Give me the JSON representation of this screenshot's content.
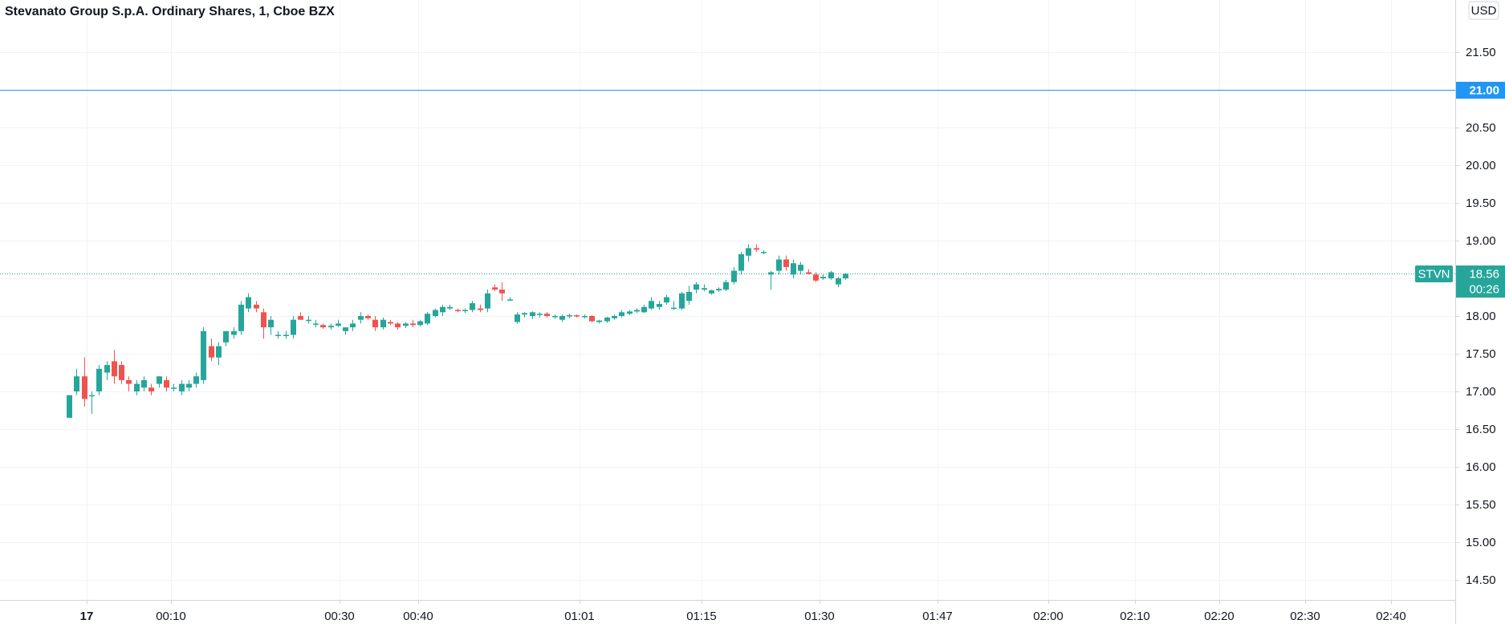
{
  "chart_data": {
    "type": "candlestick",
    "title": "Stevanato Group S.p.A. Ordinary Shares, 1, Cboe BZX",
    "currency": "USD",
    "ylim": [
      14.25,
      22.1
    ],
    "y_ticks": [
      "14.50",
      "15.00",
      "15.50",
      "16.00",
      "16.50",
      "17.00",
      "17.50",
      "18.00",
      "18.50",
      "19.00",
      "19.50",
      "20.00",
      "20.50",
      "21.00",
      "21.50"
    ],
    "x_ticks": [
      "17",
      "00:10",
      "00:30",
      "00:40",
      "01:01",
      "01:15",
      "01:30",
      "01:47",
      "02:00",
      "02:10",
      "02:20",
      "02:30",
      "02:40"
    ],
    "grid": true,
    "colors": {
      "up": "#26a69a",
      "down": "#ef5350",
      "hline": "#2196f3",
      "grid": "#f0f3fa"
    },
    "horizontal_line": {
      "value": 21.0,
      "label": "21.00"
    },
    "last_price": {
      "symbol": "STVN",
      "value": 18.56,
      "label": "18.56",
      "countdown": "00:26"
    },
    "candles": [
      [
        16.65,
        16.95,
        16.65,
        16.95
      ],
      [
        17.0,
        17.3,
        16.95,
        17.2
      ],
      [
        17.2,
        17.45,
        16.8,
        16.9
      ],
      [
        16.95,
        17.0,
        16.7,
        16.95
      ],
      [
        17.0,
        17.35,
        16.95,
        17.3
      ],
      [
        17.25,
        17.4,
        17.15,
        17.35
      ],
      [
        17.4,
        17.55,
        17.1,
        17.2
      ],
      [
        17.35,
        17.4,
        17.1,
        17.15
      ],
      [
        17.15,
        17.2,
        17.0,
        17.1
      ],
      [
        17.0,
        17.15,
        16.95,
        17.1
      ],
      [
        17.05,
        17.2,
        17.0,
        17.15
      ],
      [
        17.05,
        17.1,
        16.95,
        17.0
      ],
      [
        17.1,
        17.2,
        17.05,
        17.2
      ],
      [
        17.15,
        17.2,
        17.0,
        17.05
      ],
      [
        17.05,
        17.1,
        17.0,
        17.05
      ],
      [
        17.0,
        17.15,
        16.95,
        17.1
      ],
      [
        17.05,
        17.15,
        17.0,
        17.1
      ],
      [
        17.1,
        17.25,
        17.05,
        17.2
      ],
      [
        17.15,
        17.85,
        17.1,
        17.8
      ],
      [
        17.6,
        17.7,
        17.4,
        17.45
      ],
      [
        17.45,
        17.65,
        17.35,
        17.6
      ],
      [
        17.65,
        17.8,
        17.6,
        17.8
      ],
      [
        17.75,
        17.85,
        17.7,
        17.8
      ],
      [
        17.8,
        18.2,
        17.75,
        18.15
      ],
      [
        18.1,
        18.3,
        18.05,
        18.25
      ],
      [
        18.15,
        18.2,
        18.05,
        18.1
      ],
      [
        18.05,
        18.1,
        17.7,
        17.85
      ],
      [
        17.85,
        18.0,
        17.75,
        17.95
      ],
      [
        17.75,
        17.8,
        17.7,
        17.75
      ],
      [
        17.75,
        17.8,
        17.7,
        17.75
      ],
      [
        17.75,
        18.0,
        17.7,
        17.95
      ],
      [
        18.0,
        18.05,
        17.95,
        17.95
      ],
      [
        17.95,
        18.0,
        17.9,
        17.95
      ],
      [
        17.9,
        17.95,
        17.85,
        17.9
      ],
      [
        17.88,
        17.9,
        17.83,
        17.85
      ],
      [
        17.85,
        17.9,
        17.82,
        17.87
      ],
      [
        17.87,
        17.95,
        17.85,
        17.9
      ],
      [
        17.8,
        17.85,
        17.75,
        17.85
      ],
      [
        17.85,
        17.95,
        17.8,
        17.9
      ],
      [
        17.95,
        18.05,
        17.9,
        18.0
      ],
      [
        18.0,
        18.02,
        17.95,
        17.97
      ],
      [
        17.95,
        18.0,
        17.8,
        17.85
      ],
      [
        17.85,
        17.98,
        17.82,
        17.95
      ],
      [
        17.92,
        17.95,
        17.88,
        17.9
      ],
      [
        17.9,
        17.92,
        17.82,
        17.85
      ],
      [
        17.87,
        17.92,
        17.84,
        17.9
      ],
      [
        17.9,
        17.95,
        17.85,
        17.88
      ],
      [
        17.88,
        17.95,
        17.86,
        17.93
      ],
      [
        17.9,
        18.05,
        17.88,
        18.03
      ],
      [
        18.0,
        18.1,
        17.98,
        18.08
      ],
      [
        18.05,
        18.15,
        18.0,
        18.12
      ],
      [
        18.1,
        18.15,
        18.08,
        18.12
      ],
      [
        18.08,
        18.1,
        18.05,
        18.07
      ],
      [
        18.07,
        18.1,
        18.04,
        18.08
      ],
      [
        18.08,
        18.2,
        18.05,
        18.17
      ],
      [
        18.1,
        18.15,
        18.05,
        18.08
      ],
      [
        18.1,
        18.35,
        18.05,
        18.3
      ],
      [
        18.38,
        18.42,
        18.33,
        18.35
      ],
      [
        18.35,
        18.45,
        18.2,
        18.3
      ],
      [
        18.22,
        18.25,
        18.2,
        18.22
      ],
      [
        17.92,
        18.05,
        17.9,
        18.02
      ],
      [
        18.02,
        18.05,
        17.98,
        18.04
      ],
      [
        18.0,
        18.06,
        17.96,
        18.05
      ],
      [
        18.02,
        18.05,
        17.98,
        18.03
      ],
      [
        18.03,
        18.05,
        17.98,
        18.0
      ],
      [
        17.99,
        18.02,
        17.96,
        18.0
      ],
      [
        17.95,
        18.02,
        17.92,
        18.0
      ],
      [
        18.0,
        18.03,
        17.97,
        18.01
      ],
      [
        18.01,
        18.02,
        17.98,
        18.0
      ],
      [
        18.0,
        18.02,
        17.97,
        18.0
      ],
      [
        18.0,
        18.01,
        17.92,
        17.93
      ],
      [
        17.92,
        17.95,
        17.9,
        17.94
      ],
      [
        17.93,
        17.99,
        17.91,
        17.98
      ],
      [
        17.97,
        18.02,
        17.95,
        18.0
      ],
      [
        18.0,
        18.08,
        17.98,
        18.05
      ],
      [
        18.03,
        18.08,
        18.01,
        18.06
      ],
      [
        18.06,
        18.1,
        18.04,
        18.08
      ],
      [
        18.05,
        18.15,
        18.04,
        18.12
      ],
      [
        18.1,
        18.25,
        18.08,
        18.2
      ],
      [
        18.12,
        18.2,
        18.08,
        18.16
      ],
      [
        18.18,
        18.28,
        18.15,
        18.25
      ],
      [
        18.1,
        18.2,
        18.08,
        18.11
      ],
      [
        18.1,
        18.32,
        18.08,
        18.3
      ],
      [
        18.2,
        18.4,
        18.15,
        18.32
      ],
      [
        18.35,
        18.45,
        18.3,
        18.42
      ],
      [
        18.35,
        18.42,
        18.33,
        18.37
      ],
      [
        18.3,
        18.35,
        18.28,
        18.34
      ],
      [
        18.34,
        18.38,
        18.32,
        18.36
      ],
      [
        18.35,
        18.48,
        18.33,
        18.45
      ],
      [
        18.45,
        18.65,
        18.42,
        18.6
      ],
      [
        18.6,
        18.85,
        18.55,
        18.82
      ],
      [
        18.8,
        18.95,
        18.72,
        18.9
      ],
      [
        18.9,
        18.95,
        18.85,
        18.88
      ],
      [
        18.85,
        18.87,
        18.82,
        18.85
      ],
      [
        18.55,
        18.6,
        18.35,
        18.58
      ],
      [
        18.6,
        18.8,
        18.55,
        18.75
      ],
      [
        18.75,
        18.8,
        18.6,
        18.65
      ],
      [
        18.55,
        18.75,
        18.5,
        18.7
      ],
      [
        18.6,
        18.72,
        18.55,
        18.68
      ],
      [
        18.58,
        18.62,
        18.55,
        18.56
      ],
      [
        18.55,
        18.58,
        18.45,
        18.47
      ],
      [
        18.5,
        18.55,
        18.48,
        18.52
      ],
      [
        18.5,
        18.6,
        18.48,
        18.58
      ],
      [
        18.42,
        18.52,
        18.38,
        18.5
      ],
      [
        18.5,
        18.57,
        18.48,
        18.56
      ]
    ]
  }
}
